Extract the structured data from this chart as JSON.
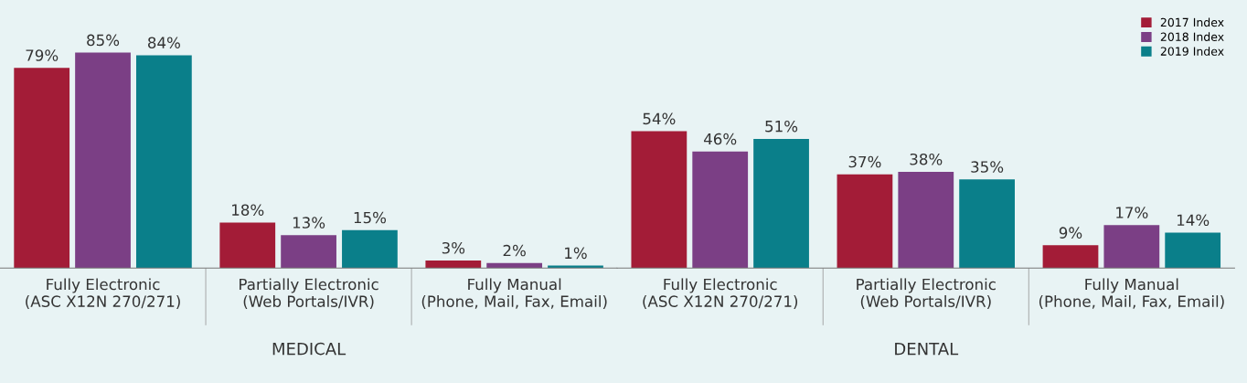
{
  "chart_data": [
    {
      "type": "bar",
      "xlabel": "MEDICAL",
      "categories": [
        "Fully Electronic\n(ASC X12N 270/271)",
        "Partially Electronic\n(Web Portals/IVR)",
        "Fully Manual\n(Phone, Mail, Fax, Email)"
      ],
      "series": [
        {
          "color": "#a31c37",
          "values": [
            79,
            18,
            3
          ],
          "value_labels": [
            "79%",
            "18%",
            "3%"
          ]
        },
        {
          "color": "#7b3f85",
          "values": [
            85,
            13,
            2
          ],
          "value_labels": [
            "85%",
            "13%",
            "2%"
          ]
        },
        {
          "color": "#0a7f8a",
          "values": [
            84,
            15,
            1
          ],
          "value_labels": [
            "84%",
            "15%",
            "1%"
          ]
        }
      ],
      "legend": false,
      "grid": false
    },
    {
      "type": "bar",
      "xlabel": "DENTAL",
      "categories": [
        "Fully Electronic\n(ASC X12N 270/271)",
        "Partially Electronic\n(Web Portals/IVR)",
        "Fully Manual\n(Phone, Mail, Fax, Email)"
      ],
      "series": [
        {
          "name": "2017 Index",
          "color": "#a31c37",
          "values": [
            54,
            37,
            9
          ],
          "value_labels": [
            "54%",
            "37%",
            "9%"
          ]
        },
        {
          "name": "2018 Index",
          "color": "#7b3f85",
          "values": [
            46,
            38,
            17
          ],
          "value_labels": [
            "46%",
            "38%",
            "17%"
          ]
        },
        {
          "name": "2019 Index",
          "color": "#0a7f8a",
          "values": [
            51,
            35,
            14
          ],
          "value_labels": [
            "51%",
            "35%",
            "14%"
          ]
        }
      ],
      "legend": "top right",
      "grid": false
    }
  ]
}
